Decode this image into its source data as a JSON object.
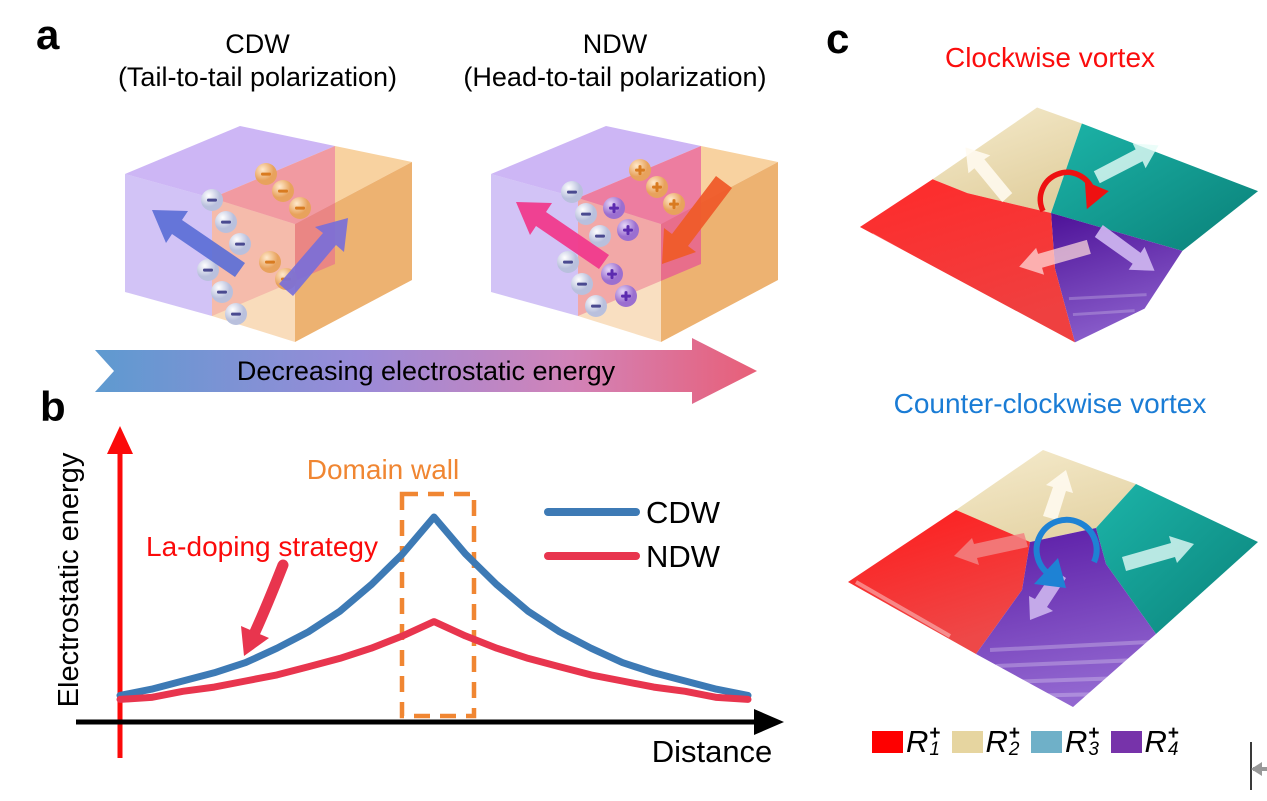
{
  "panels": {
    "a": {
      "label": "a",
      "cdw": {
        "title": "CDW",
        "subtitle": "(Tail-to-tail polarization)"
      },
      "ndw": {
        "title": "NDW",
        "subtitle": "(Head-to-tail polarization)"
      },
      "arrow_label": "Decreasing electrostatic energy",
      "charge_signs": {
        "negative": "−",
        "positive": "+"
      },
      "colors": {
        "left_domain_purple": "#b79ef0",
        "right_domain_orange": "#f4c084",
        "wall_magenta": "#e440a4",
        "cdw_arrows_blue": "#5b6fd6",
        "ndw_left_arrow_pink": "#f03a8c",
        "ndw_right_arrow_orange": "#ef5b2a",
        "gradient_arrow": [
          "#5e9ad0",
          "#9a8bd8",
          "#d283b8",
          "#e85f78"
        ]
      }
    },
    "b": {
      "label": "b",
      "ylabel": "Electrostatic energy",
      "xlabel": "Distance",
      "domain_wall_annotation": "Domain wall",
      "strategy_annotation": "La-doping strategy",
      "legend": [
        {
          "name": "CDW",
          "color": "#3d7ab5"
        },
        {
          "name": "NDW",
          "color": "#e8354e"
        }
      ],
      "colors": {
        "axis_red": "#fb0a0a",
        "axis_black": "#000000",
        "domain_wall_orange": "#f08632",
        "strategy_red": "#fb0a0a",
        "strategy_arrow_red": "#e8354e"
      }
    },
    "c": {
      "label": "c",
      "top_title": "Clockwise vortex",
      "top_title_color": "#fb0d0d",
      "bottom_title": "Counter-clockwise vortex",
      "bottom_title_color": "#1a7cd5",
      "legend": [
        {
          "symbol": "R",
          "sub": "1",
          "sup": "+",
          "color": "#fe0000"
        },
        {
          "symbol": "R",
          "sub": "2",
          "sup": "+",
          "color": "#e6d5a0"
        },
        {
          "symbol": "R",
          "sub": "3",
          "sup": "+",
          "color": "#6fb0c8"
        },
        {
          "symbol": "R",
          "sub": "4",
          "sup": "+",
          "color": "#7733aa"
        }
      ],
      "domain_colors": {
        "red": "#f32222",
        "cream": "#ede0bd",
        "teal": "#17aba0",
        "purple": "#55149f"
      },
      "vortex_arrow_colors": {
        "clockwise": "#ee1111",
        "counter_clockwise": "#1e82d4"
      }
    }
  },
  "chart_data": {
    "type": "line",
    "title": "",
    "xlabel": "Distance",
    "ylabel": "Electrostatic energy",
    "x": [
      0,
      0.05,
      0.1,
      0.15,
      0.2,
      0.25,
      0.3,
      0.35,
      0.4,
      0.45,
      0.5,
      0.55,
      0.6,
      0.65,
      0.7,
      0.75,
      0.8,
      0.85,
      0.9,
      0.95,
      1
    ],
    "series": [
      {
        "name": "CDW",
        "color": "#3d7ab5",
        "values": [
          0.13,
          0.16,
          0.2,
          0.24,
          0.29,
          0.36,
          0.44,
          0.54,
          0.67,
          0.82,
          1.0,
          0.82,
          0.67,
          0.54,
          0.44,
          0.36,
          0.29,
          0.24,
          0.2,
          0.16,
          0.13
        ]
      },
      {
        "name": "NDW",
        "color": "#e8354e",
        "values": [
          0.11,
          0.12,
          0.15,
          0.17,
          0.2,
          0.23,
          0.27,
          0.31,
          0.36,
          0.42,
          0.49,
          0.42,
          0.36,
          0.31,
          0.27,
          0.23,
          0.2,
          0.17,
          0.15,
          0.12,
          0.11
        ]
      }
    ],
    "ylim": [
      0,
      1.1
    ],
    "xlim": [
      0,
      1
    ],
    "grid": false,
    "ticks": "none (schematic axes with arrowheads)",
    "legend_position": "upper right",
    "annotations": [
      {
        "text": "Domain wall",
        "color": "#f08632",
        "target": "dashed box around both curve peaks at x=0.5"
      },
      {
        "text": "La-doping strategy",
        "color": "#fb0a0a",
        "target": "arrow pointing down from CDW toward NDW curve"
      }
    ]
  }
}
